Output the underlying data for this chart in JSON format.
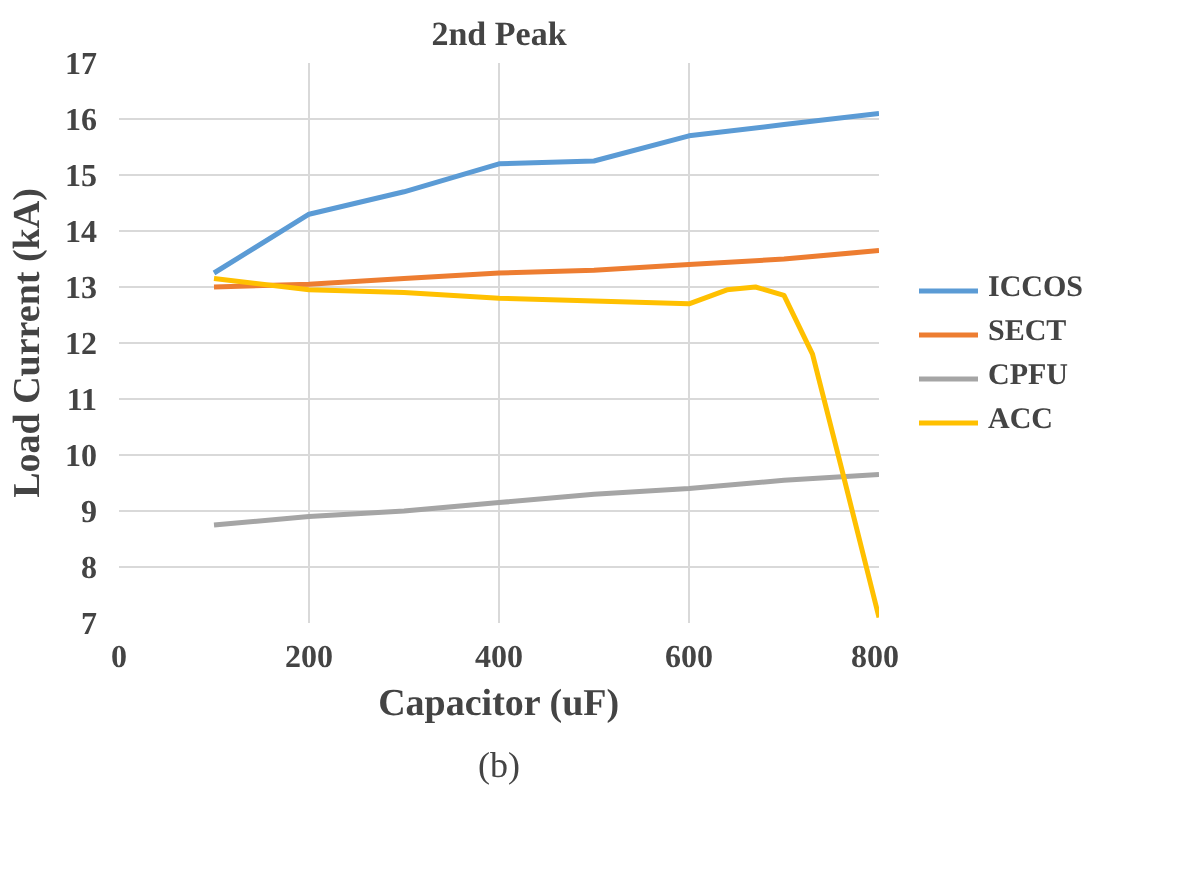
{
  "chart_data": {
    "type": "line",
    "title": "2nd Peak",
    "xlabel": "Capacitor (uF)",
    "ylabel": "Load Current (kA)",
    "annotations": [
      "(b)"
    ],
    "xlim": [
      0,
      800
    ],
    "xticks": [
      0,
      200,
      400,
      600,
      800
    ],
    "ylim": [
      7,
      17
    ],
    "yticks": [
      7,
      8,
      9,
      10,
      11,
      12,
      13,
      14,
      15,
      16,
      17
    ],
    "grid": true,
    "legend": "right",
    "line_style": "solid",
    "series": [
      {
        "name": "ICCOS",
        "color": "#5b9bd5",
        "x": [
          100,
          200,
          300,
          400,
          500,
          600,
          700,
          800
        ],
        "values": [
          13.25,
          14.3,
          14.7,
          15.2,
          15.25,
          15.7,
          15.9,
          16.1
        ]
      },
      {
        "name": "SECT",
        "color": "#ed7d31",
        "x": [
          100,
          200,
          300,
          400,
          500,
          600,
          700,
          800
        ],
        "values": [
          13.0,
          13.05,
          13.15,
          13.25,
          13.3,
          13.4,
          13.5,
          13.65
        ]
      },
      {
        "name": "CPFU",
        "color": "#a5a5a5",
        "x": [
          100,
          200,
          300,
          400,
          500,
          600,
          700,
          800
        ],
        "values": [
          8.75,
          8.9,
          9.0,
          9.15,
          9.3,
          9.4,
          9.55,
          9.65
        ]
      },
      {
        "name": "ACC",
        "color": "#ffc000",
        "x": [
          100,
          200,
          300,
          400,
          500,
          600,
          640,
          670,
          700,
          730,
          760,
          800
        ],
        "values": [
          13.15,
          12.95,
          12.9,
          12.8,
          12.75,
          12.7,
          12.95,
          13.0,
          12.85,
          11.8,
          9.8,
          7.1
        ]
      }
    ]
  }
}
